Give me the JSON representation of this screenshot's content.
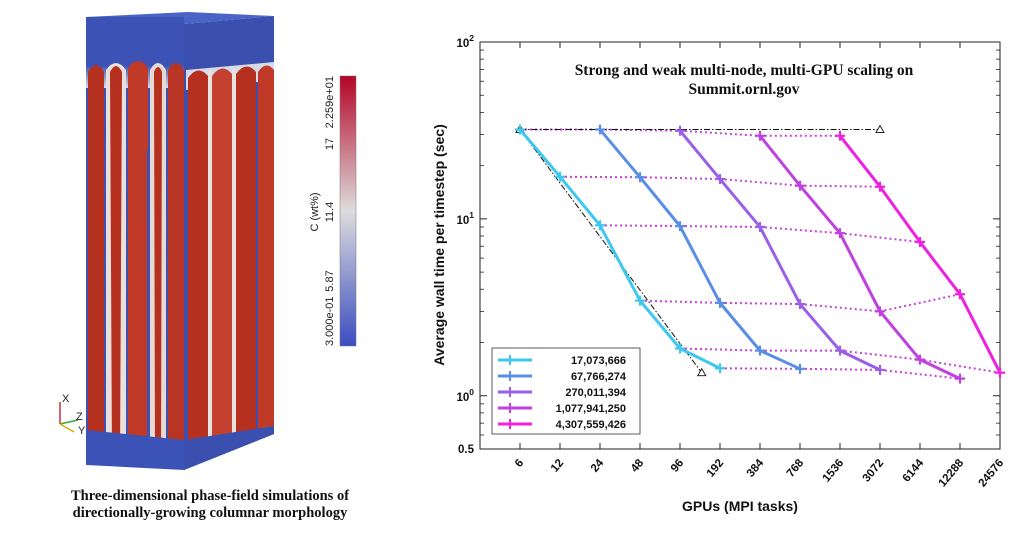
{
  "left_panel": {
    "caption_lines": [
      "Three-dimensional phase-field simulations of",
      "directionally-growing columnar morphology"
    ],
    "colorbar": {
      "title": "C (wt%)",
      "ticks": [
        "3.000e-01",
        "5.87",
        "11.4",
        "17",
        "2.259e+01"
      ],
      "colors": [
        "#3b4cc0",
        "#dddddd",
        "#b40426"
      ]
    },
    "orientation_axes": [
      "X",
      "Z",
      "Y"
    ]
  },
  "chart_data": {
    "type": "line",
    "title_lines": [
      "Strong and weak multi-node, multi-GPU scaling on",
      "Summit.ornl.gov"
    ],
    "xlabel": "GPUs (MPI tasks)",
    "ylabel": "Average wall time per timestep (sec)",
    "x_scale": "log2",
    "y_scale": "log10",
    "x_ticks": [
      "6",
      "12",
      "24",
      "48",
      "96",
      "192",
      "384",
      "768",
      "1536",
      "3072",
      "6144",
      "12288",
      "24576"
    ],
    "y_ticks": [
      {
        "value": 0.5,
        "label": "0.5"
      },
      {
        "value": 1,
        "label": "10^0"
      },
      {
        "value": 10,
        "label": "10^1"
      },
      {
        "value": 100,
        "label": "10^2"
      }
    ],
    "xlim": [
      3,
      24576
    ],
    "ylim": [
      0.5,
      100
    ],
    "series": [
      {
        "name": "17,073,666",
        "color": "#3ec8ef",
        "x": [
          6,
          12,
          24,
          48,
          96,
          192
        ],
        "y": [
          32,
          17.3,
          9.2,
          3.45,
          1.85,
          1.43
        ]
      },
      {
        "name": "67,766,274",
        "color": "#5a8ee6",
        "x": [
          24,
          48,
          96,
          192,
          384,
          768
        ],
        "y": [
          32,
          17.2,
          9.1,
          3.35,
          1.8,
          1.42
        ]
      },
      {
        "name": "270,011,394",
        "color": "#9a5ee8",
        "x": [
          96,
          192,
          384,
          768,
          1536,
          3072
        ],
        "y": [
          31.5,
          16.8,
          9.0,
          3.3,
          1.8,
          1.4
        ]
      },
      {
        "name": "1,077,941,250",
        "color": "#c040e0",
        "x": [
          384,
          768,
          1536,
          3072,
          6144,
          12288
        ],
        "y": [
          29.5,
          15.4,
          8.3,
          3.0,
          1.6,
          1.25
        ]
      },
      {
        "name": "4,307,559,426",
        "color": "#f020e0",
        "x": [
          1536,
          3072,
          6144,
          12288,
          24576
        ],
        "y": [
          29.5,
          15.2,
          7.4,
          3.75,
          1.35
        ]
      }
    ],
    "weak_lines": [
      {
        "x": [
          6,
          24,
          96,
          384,
          1536
        ],
        "y": [
          32,
          32,
          31.5,
          29.5,
          29.5
        ],
        "color": "#cc40dd"
      },
      {
        "x": [
          12,
          48,
          192,
          768,
          3072
        ],
        "y": [
          17.3,
          17.2,
          16.8,
          15.4,
          15.2
        ],
        "color": "#cc40dd"
      },
      {
        "x": [
          24,
          96,
          384,
          1536,
          6144
        ],
        "y": [
          9.2,
          9.1,
          9.0,
          8.3,
          7.4
        ],
        "color": "#cc40dd"
      },
      {
        "x": [
          48,
          192,
          768,
          3072,
          12288
        ],
        "y": [
          3.45,
          3.35,
          3.3,
          3.0,
          3.75
        ],
        "color": "#cc40dd"
      },
      {
        "x": [
          96,
          384,
          1536,
          6144,
          24576
        ],
        "y": [
          1.85,
          1.8,
          1.8,
          1.6,
          1.35
        ],
        "color": "#cc40dd"
      },
      {
        "x": [
          192,
          768,
          3072,
          12288
        ],
        "y": [
          1.43,
          1.42,
          1.4,
          1.25
        ],
        "color": "#cc40dd"
      }
    ],
    "ideal_lines": [
      {
        "name": "ideal-weak",
        "x": [
          6,
          3072
        ],
        "y": [
          32,
          32
        ]
      },
      {
        "name": "ideal-strong",
        "x": [
          6,
          140
        ],
        "y": [
          32,
          1.35
        ]
      }
    ],
    "legend_position": "bottom-left"
  }
}
